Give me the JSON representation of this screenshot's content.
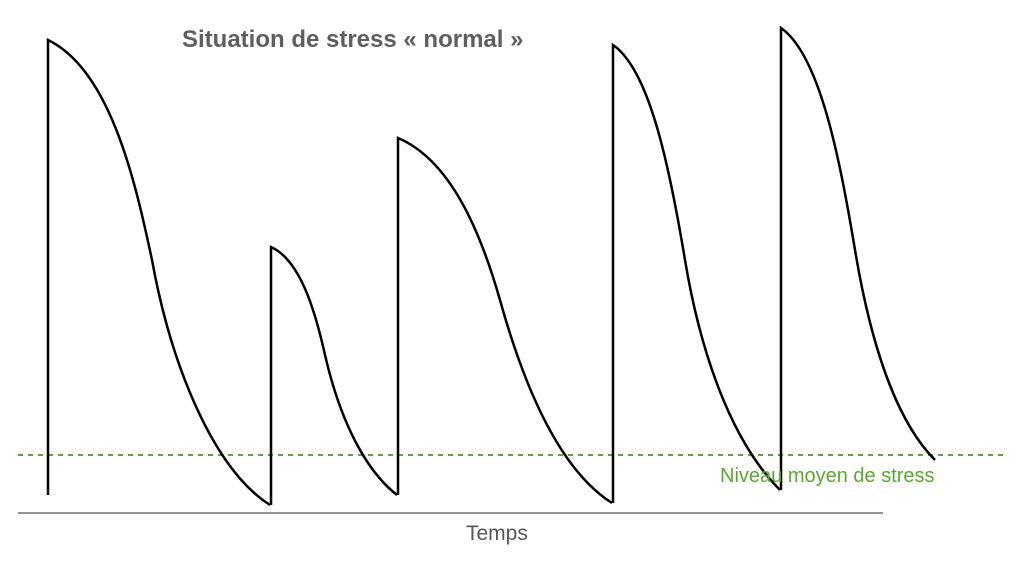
{
  "title": "Situation de stress « normal »",
  "average_label": "Niveau moyen de stress",
  "x_axis_label": "Temps",
  "colors": {
    "curve": "#000000",
    "average_line": "#5aa832",
    "axis": "#555555",
    "title": "#5e5e5e"
  }
}
